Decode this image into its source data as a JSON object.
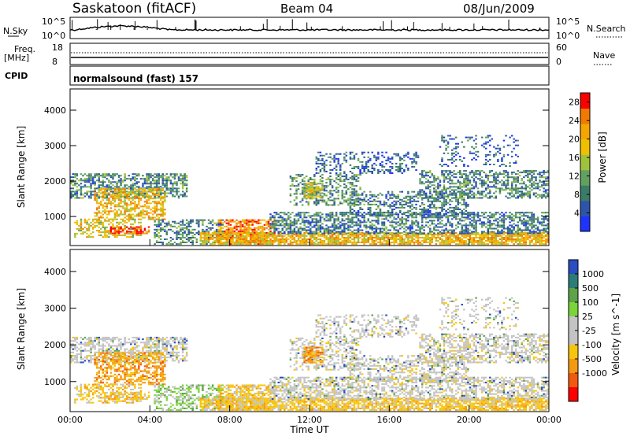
{
  "header": {
    "station": "Saskatoon  (fitACF)",
    "beam": "Beam 04",
    "date": "08/Jun/2009"
  },
  "params": {
    "nsky_label": "N.Sky",
    "nsky_ticks": [
      "10^5",
      "10^0"
    ],
    "nsearch_label": "N.Search",
    "nsearch_ticks": [
      "10^5",
      "10^0"
    ],
    "freq_label": "Freq.",
    "freq_unit": "[MHz]",
    "freq_ticks": [
      "18",
      "8"
    ],
    "nave_label": "Nave",
    "nave_ticks": [
      "60",
      "0"
    ],
    "cpid_label": "CPID",
    "cpid_text": "normalsound (fast) 157"
  },
  "colors": {
    "power_scale": [
      "#1f33ff",
      "#2d54a8",
      "#3a7c66",
      "#62a060",
      "#a0c23a",
      "#f0c000",
      "#f5a500",
      "#f07a00",
      "#ff0000"
    ],
    "velocity_scale": [
      "#2a4dbf",
      "#2c7d78",
      "#5ea24a",
      "#7ad43a",
      "#c4c4c4",
      "#c4c4c4",
      "#f7c60a",
      "#f59a10",
      "#f05a10",
      "#ff0000"
    ]
  },
  "chart_data": [
    {
      "type": "heatmap",
      "name": "power",
      "ylabel": "Slant Range [km]",
      "yticks": [
        "1000",
        "2000",
        "3000",
        "4000"
      ],
      "ylim": [
        180,
        4600
      ],
      "xlim": [
        0,
        24
      ],
      "colorbar": {
        "label": "Power [dB]",
        "ticks": [
          "4",
          "8",
          "12",
          "16",
          "20",
          "24",
          "28"
        ],
        "range": [
          0,
          30
        ]
      }
    },
    {
      "type": "heatmap",
      "name": "velocity",
      "ylabel": "Slant Range [km]",
      "yticks": [
        "1000",
        "2000",
        "3000",
        "4000"
      ],
      "ylim": [
        180,
        4600
      ],
      "xlim": [
        0,
        24
      ],
      "xlabel": "Time UT",
      "xticks": [
        "00:00",
        "04:00",
        "08:00",
        "12:00",
        "16:00",
        "20:00",
        "00:00"
      ],
      "colorbar": {
        "label": "Velocity [m s^-1]",
        "ticks": [
          "1000",
          "500",
          "100",
          "25",
          "-25",
          "-100",
          "-500",
          "-1000"
        ]
      }
    }
  ]
}
